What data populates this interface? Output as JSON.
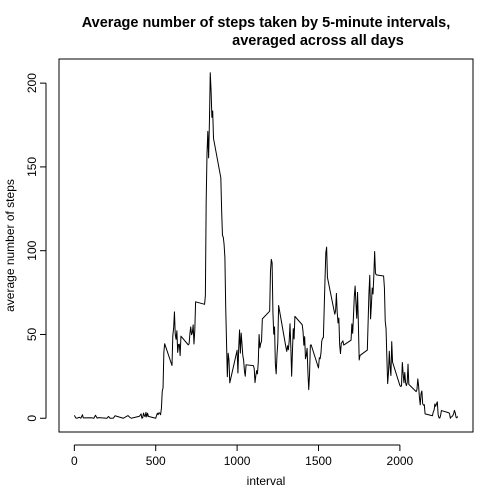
{
  "chart_data": {
    "type": "line",
    "title_line1": "Average number of steps taken by 5-minute intervals,",
    "title_line2": "averaged across all days",
    "xlabel": "interval",
    "ylabel": "average number of steps",
    "xlim": [
      -94.2,
      2449.2
    ],
    "ylim": [
      -8.2,
      214.4
    ],
    "x_ticks": [
      0,
      500,
      1000,
      1500,
      2000
    ],
    "y_ticks": [
      0,
      50,
      100,
      150,
      200
    ],
    "grid": false,
    "legend": "none",
    "line_color": "#000000",
    "series": [
      {
        "values": [
          [
            0,
            1.7
          ],
          [
            10,
            0.1
          ],
          [
            20,
            0.1
          ],
          [
            30,
            0.6
          ],
          [
            40,
            0.0
          ],
          [
            50,
            2.1
          ],
          [
            55,
            0.2
          ],
          [
            100,
            0.3
          ],
          [
            110,
            0.2
          ],
          [
            120,
            0.0
          ],
          [
            130,
            1.8
          ],
          [
            140,
            0.1
          ],
          [
            150,
            0.4
          ],
          [
            200,
            0.0
          ],
          [
            210,
            1.1
          ],
          [
            220,
            0.0
          ],
          [
            230,
            0.0
          ],
          [
            240,
            0.1
          ],
          [
            250,
            1.5
          ],
          [
            300,
            0.0
          ],
          [
            330,
            1.6
          ],
          [
            340,
            0.6
          ],
          [
            350,
            0.0
          ],
          [
            400,
            1.2
          ],
          [
            410,
            2.6
          ],
          [
            415,
            0.0
          ],
          [
            420,
            0.3
          ],
          [
            425,
            3.1
          ],
          [
            430,
            1.6
          ],
          [
            435,
            0.9
          ],
          [
            440,
            3.5
          ],
          [
            445,
            0.8
          ],
          [
            450,
            3.0
          ],
          [
            455,
            1.1
          ],
          [
            500,
            0.0
          ],
          [
            505,
            1.6
          ],
          [
            510,
            3.0
          ],
          [
            515,
            2.2
          ],
          [
            520,
            3.3
          ],
          [
            525,
            3.0
          ],
          [
            530,
            2.1
          ],
          [
            535,
            6.0
          ],
          [
            540,
            16.0
          ],
          [
            545,
            18.3
          ],
          [
            550,
            39.5
          ],
          [
            555,
            44.5
          ],
          [
            600,
            31.5
          ],
          [
            605,
            49.3
          ],
          [
            610,
            53.8
          ],
          [
            615,
            63.5
          ],
          [
            620,
            50.0
          ],
          [
            625,
            47.1
          ],
          [
            630,
            52.2
          ],
          [
            635,
            39.3
          ],
          [
            640,
            44.0
          ],
          [
            645,
            44.2
          ],
          [
            650,
            37.4
          ],
          [
            655,
            49.0
          ],
          [
            700,
            43.8
          ],
          [
            705,
            44.4
          ],
          [
            710,
            50.5
          ],
          [
            715,
            54.5
          ],
          [
            720,
            49.9
          ],
          [
            725,
            51.0
          ],
          [
            730,
            55.7
          ],
          [
            735,
            44.3
          ],
          [
            740,
            52.3
          ],
          [
            745,
            69.5
          ],
          [
            800,
            68.0
          ],
          [
            805,
            73.0
          ],
          [
            810,
            129.4
          ],
          [
            815,
            157.5
          ],
          [
            820,
            171.2
          ],
          [
            825,
            155.4
          ],
          [
            830,
            177.3
          ],
          [
            835,
            206.2
          ],
          [
            840,
            195.9
          ],
          [
            845,
            179.6
          ],
          [
            850,
            183.4
          ],
          [
            855,
            167.0
          ],
          [
            900,
            143.5
          ],
          [
            905,
            124.0
          ],
          [
            910,
            109.1
          ],
          [
            915,
            108.1
          ],
          [
            920,
            103.7
          ],
          [
            925,
            95.9
          ],
          [
            930,
            66.2
          ],
          [
            935,
            45.2
          ],
          [
            940,
            24.8
          ],
          [
            945,
            38.8
          ],
          [
            950,
            34.9
          ],
          [
            955,
            21.1
          ],
          [
            1000,
            40.6
          ],
          [
            1005,
            27.0
          ],
          [
            1010,
            42.4
          ],
          [
            1015,
            52.7
          ],
          [
            1020,
            38.9
          ],
          [
            1025,
            50.8
          ],
          [
            1030,
            44.3
          ],
          [
            1035,
            37.4
          ],
          [
            1040,
            34.7
          ],
          [
            1045,
            28.3
          ],
          [
            1050,
            25.1
          ],
          [
            1055,
            31.9
          ],
          [
            1100,
            31.4
          ],
          [
            1105,
            29.7
          ],
          [
            1110,
            21.3
          ],
          [
            1115,
            25.5
          ],
          [
            1120,
            28.4
          ],
          [
            1125,
            26.5
          ],
          [
            1130,
            33.4
          ],
          [
            1135,
            50.0
          ],
          [
            1140,
            42.0
          ],
          [
            1145,
            44.6
          ],
          [
            1150,
            46.0
          ],
          [
            1155,
            59.3
          ],
          [
            1200,
            63.9
          ],
          [
            1205,
            87.7
          ],
          [
            1210,
            94.8
          ],
          [
            1215,
            92.8
          ],
          [
            1220,
            63.4
          ],
          [
            1225,
            50.2
          ],
          [
            1230,
            54.5
          ],
          [
            1235,
            32.4
          ],
          [
            1240,
            26.5
          ],
          [
            1245,
            37.7
          ],
          [
            1250,
            45.1
          ],
          [
            1255,
            67.3
          ],
          [
            1300,
            42.3
          ],
          [
            1305,
            39.9
          ],
          [
            1310,
            43.3
          ],
          [
            1315,
            40.9
          ],
          [
            1320,
            46.2
          ],
          [
            1325,
            56.4
          ],
          [
            1330,
            42.8
          ],
          [
            1335,
            25.1
          ],
          [
            1340,
            39.9
          ],
          [
            1345,
            53.5
          ],
          [
            1350,
            47.3
          ],
          [
            1355,
            60.8
          ],
          [
            1400,
            55.8
          ],
          [
            1405,
            51.9
          ],
          [
            1410,
            43.6
          ],
          [
            1415,
            48.7
          ],
          [
            1420,
            35.5
          ],
          [
            1425,
            37.5
          ],
          [
            1430,
            41.8
          ],
          [
            1435,
            27.5
          ],
          [
            1440,
            17.1
          ],
          [
            1445,
            26.1
          ],
          [
            1450,
            43.6
          ],
          [
            1455,
            43.8
          ],
          [
            1500,
            30.0
          ],
          [
            1505,
            36.1
          ],
          [
            1510,
            35.5
          ],
          [
            1515,
            38.8
          ],
          [
            1520,
            45.9
          ],
          [
            1525,
            47.8
          ],
          [
            1530,
            48.1
          ],
          [
            1535,
            65.3
          ],
          [
            1540,
            82.9
          ],
          [
            1545,
            98.7
          ],
          [
            1550,
            102.1
          ],
          [
            1555,
            84.0
          ],
          [
            1600,
            62.1
          ],
          [
            1605,
            64.1
          ],
          [
            1610,
            74.5
          ],
          [
            1615,
            63.2
          ],
          [
            1620,
            56.9
          ],
          [
            1625,
            59.8
          ],
          [
            1630,
            43.9
          ],
          [
            1635,
            38.6
          ],
          [
            1640,
            44.7
          ],
          [
            1645,
            45.5
          ],
          [
            1650,
            46.2
          ],
          [
            1655,
            43.7
          ],
          [
            1700,
            46.6
          ],
          [
            1705,
            56.3
          ],
          [
            1710,
            50.7
          ],
          [
            1715,
            61.2
          ],
          [
            1720,
            72.7
          ],
          [
            1725,
            78.9
          ],
          [
            1730,
            68.9
          ],
          [
            1735,
            59.7
          ],
          [
            1740,
            75.1
          ],
          [
            1745,
            56.5
          ],
          [
            1750,
            34.8
          ],
          [
            1755,
            37.5
          ],
          [
            1800,
            40.7
          ],
          [
            1805,
            58.0
          ],
          [
            1810,
            74.7
          ],
          [
            1815,
            85.3
          ],
          [
            1820,
            59.3
          ],
          [
            1825,
            67.8
          ],
          [
            1830,
            77.7
          ],
          [
            1835,
            74.2
          ],
          [
            1840,
            85.3
          ],
          [
            1845,
            99.5
          ],
          [
            1850,
            86.6
          ],
          [
            1855,
            85.6
          ],
          [
            1900,
            84.9
          ],
          [
            1905,
            77.8
          ],
          [
            1910,
            58.0
          ],
          [
            1915,
            53.4
          ],
          [
            1920,
            36.3
          ],
          [
            1925,
            20.7
          ],
          [
            1930,
            27.4
          ],
          [
            1935,
            40.0
          ],
          [
            1940,
            30.2
          ],
          [
            1945,
            25.5
          ],
          [
            1950,
            45.7
          ],
          [
            1955,
            33.5
          ],
          [
            2000,
            19.6
          ],
          [
            2005,
            19.0
          ],
          [
            2010,
            19.3
          ],
          [
            2015,
            33.3
          ],
          [
            2020,
            26.8
          ],
          [
            2025,
            21.2
          ],
          [
            2030,
            27.3
          ],
          [
            2035,
            21.3
          ],
          [
            2040,
            19.5
          ],
          [
            2045,
            21.3
          ],
          [
            2050,
            32.3
          ],
          [
            2055,
            20.2
          ],
          [
            2100,
            15.9
          ],
          [
            2105,
            17.2
          ],
          [
            2110,
            23.5
          ],
          [
            2115,
            19.2
          ],
          [
            2120,
            12.5
          ],
          [
            2125,
            8.0
          ],
          [
            2130,
            14.7
          ],
          [
            2135,
            16.3
          ],
          [
            2140,
            8.7
          ],
          [
            2145,
            7.8
          ],
          [
            2150,
            8.1
          ],
          [
            2155,
            2.6
          ],
          [
            2200,
            1.5
          ],
          [
            2205,
            3.7
          ],
          [
            2210,
            4.8
          ],
          [
            2215,
            8.5
          ],
          [
            2220,
            7.1
          ],
          [
            2225,
            8.7
          ],
          [
            2230,
            9.8
          ],
          [
            2235,
            2.2
          ],
          [
            2240,
            0.3
          ],
          [
            2245,
            0.1
          ],
          [
            2250,
            1.6
          ],
          [
            2255,
            4.6
          ],
          [
            2300,
            3.3
          ],
          [
            2305,
            2.8
          ],
          [
            2310,
            0.0
          ],
          [
            2315,
            0.8
          ],
          [
            2320,
            1.0
          ],
          [
            2325,
            1.6
          ],
          [
            2330,
            2.6
          ],
          [
            2335,
            4.7
          ],
          [
            2340,
            3.3
          ],
          [
            2345,
            0.6
          ],
          [
            2350,
            0.2
          ],
          [
            2355,
            1.1
          ]
        ]
      }
    ]
  }
}
